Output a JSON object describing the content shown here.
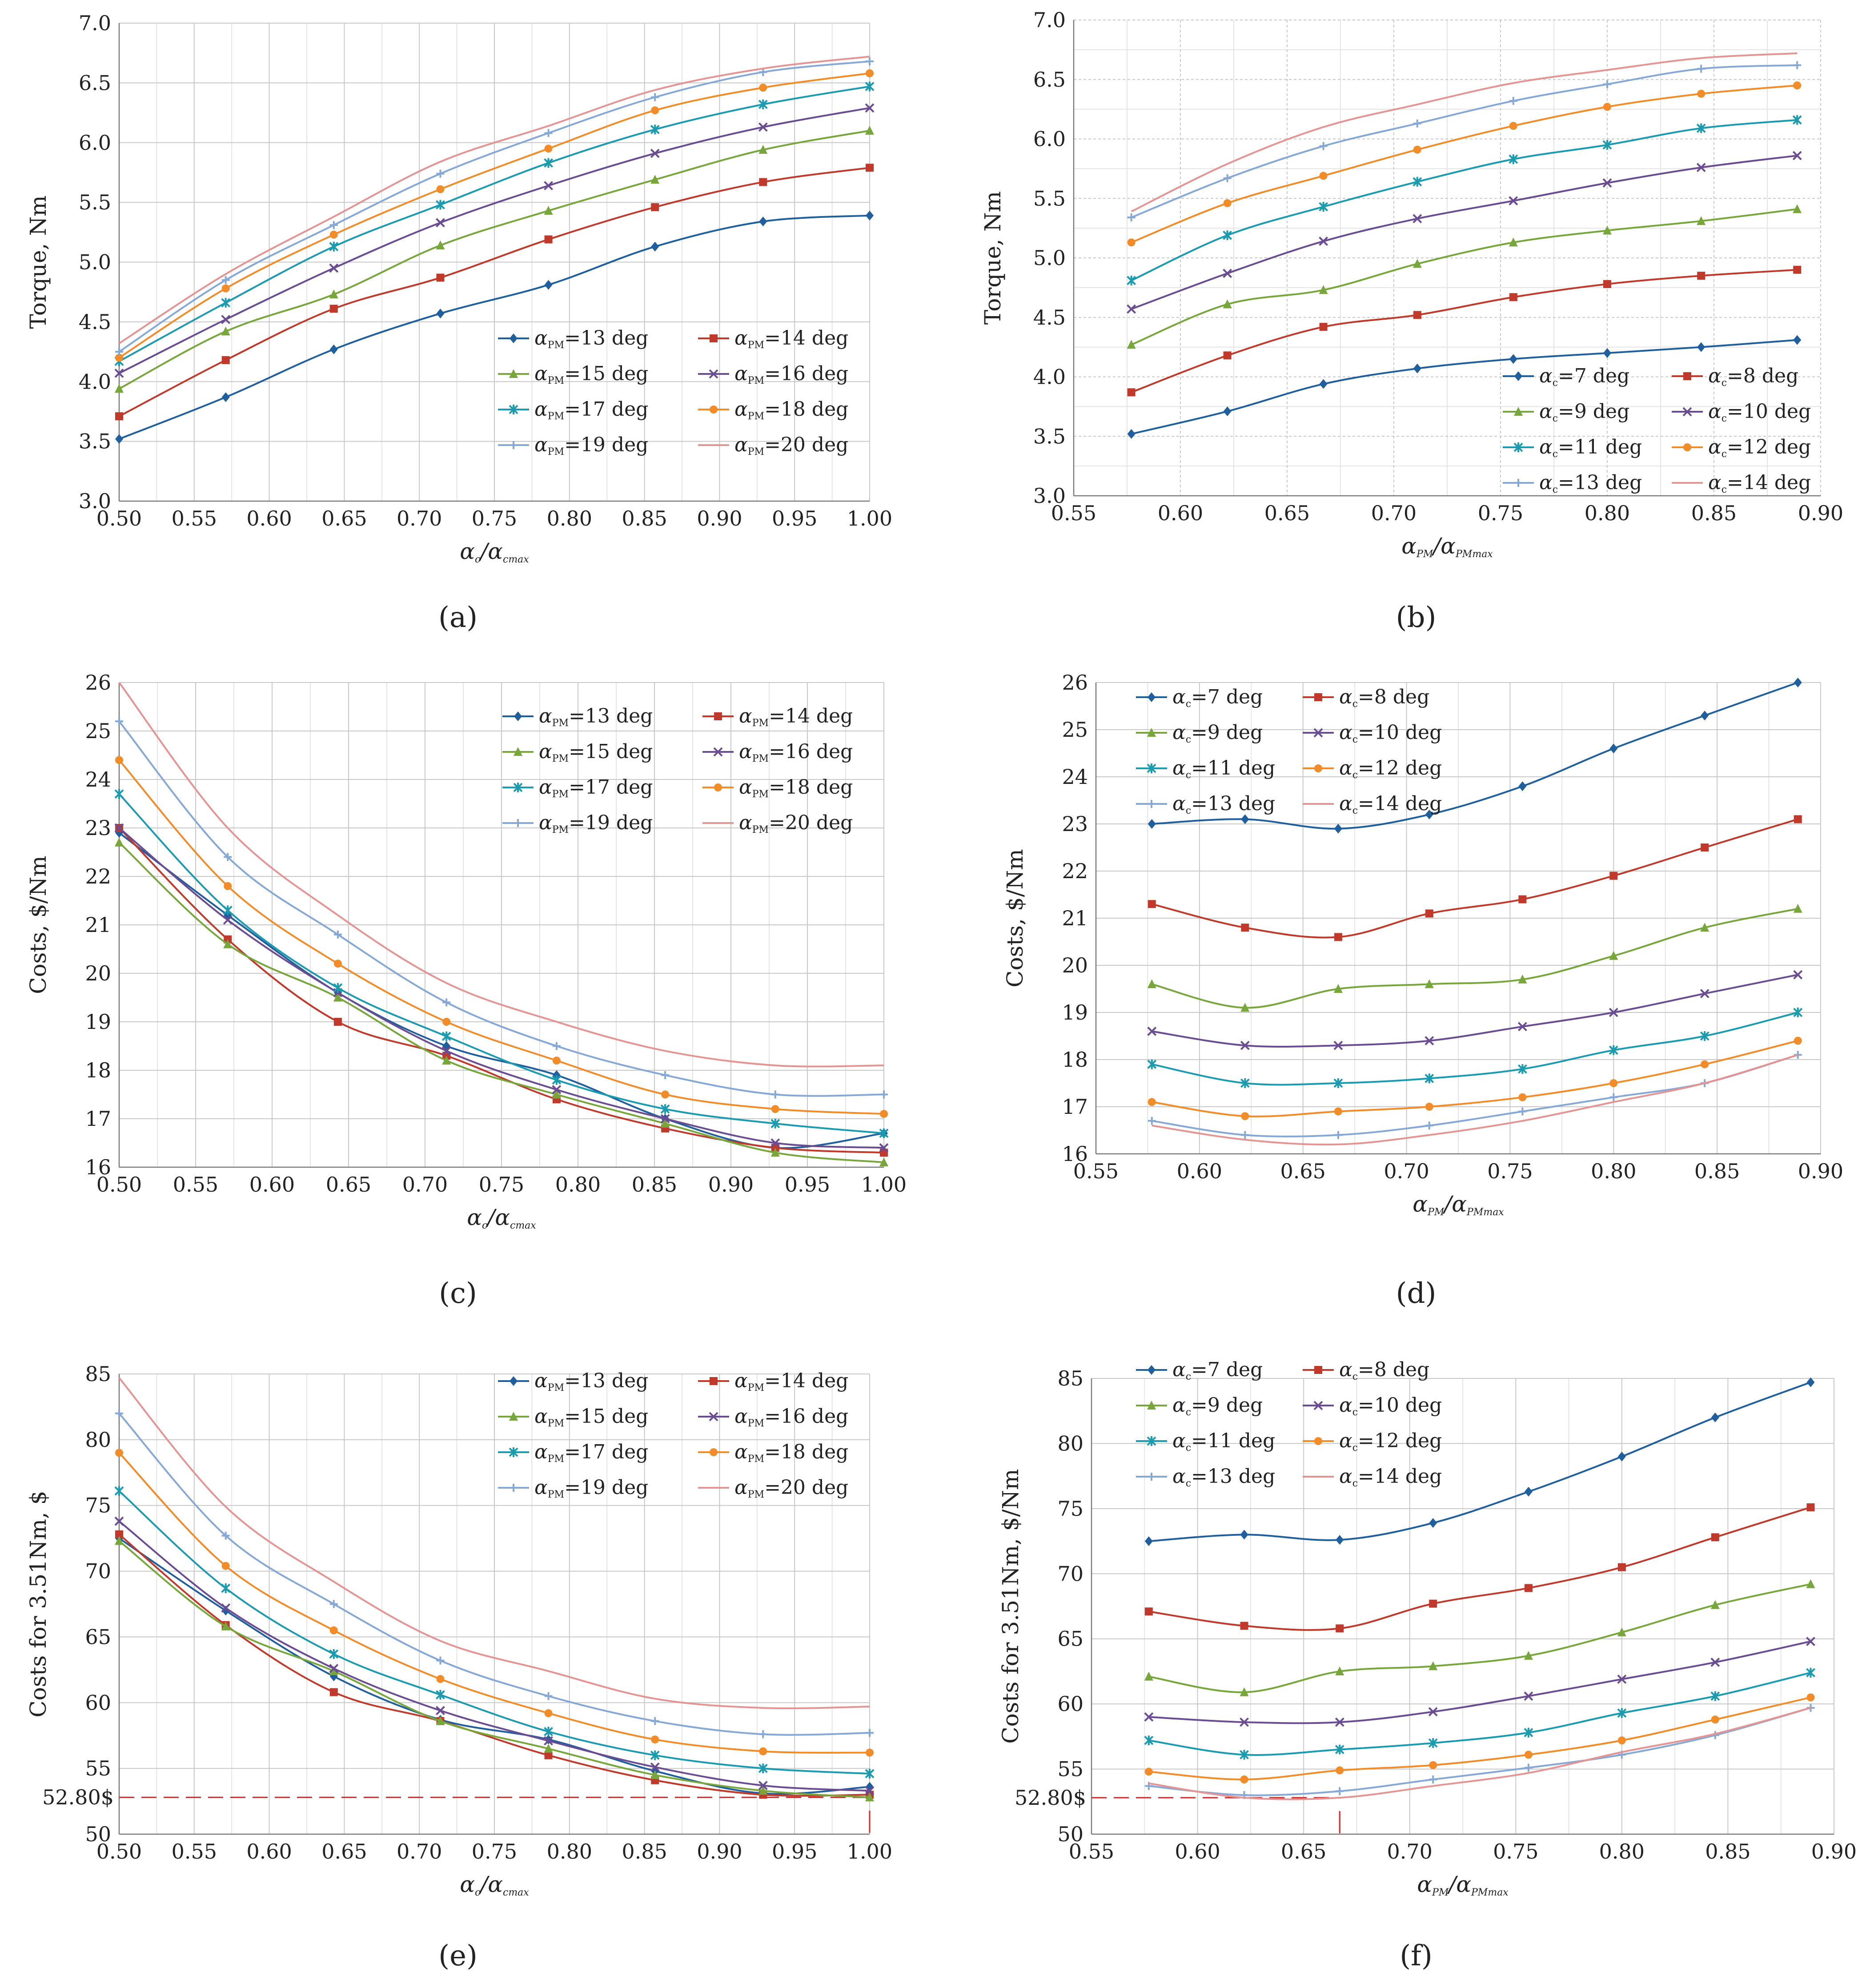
{
  "colors": {
    "s1": "#1f5f9e",
    "s2": "#c0392b",
    "s3": "#77a63b",
    "s4": "#6a4c93",
    "s5": "#1a9bb0",
    "s6": "#f28c28",
    "s7": "#86a8d6",
    "s8": "#e59494",
    "grid": "#c8c8c8",
    "axis": "#7a7a7a",
    "annot": "#d62728"
  },
  "chart_data": [
    {
      "id": "a",
      "type": "line",
      "caption": "(a)",
      "ylabel": "Torque, Nm",
      "xlabel": {
        "main": "α",
        "sub1": "c",
        "sep": "/α",
        "sub2": "cmax"
      },
      "xlim": [
        0.5,
        1.0
      ],
      "ylim": [
        3.0,
        7.0
      ],
      "xticks": [
        "0.50",
        "0.55",
        "0.60",
        "0.65",
        "0.70",
        "0.75",
        "0.80",
        "0.85",
        "0.90",
        "0.95",
        "1.00"
      ],
      "yticks": [
        "3.0",
        "3.5",
        "4.0",
        "4.5",
        "5.0",
        "5.5",
        "6.0",
        "6.5",
        "7.0"
      ],
      "legend_position": "lower-right",
      "x": [
        0.5,
        0.571,
        0.643,
        0.714,
        0.786,
        0.857,
        0.929,
        1.0
      ],
      "series": [
        {
          "name": "=13 deg",
          "sym": "α",
          "sub": "PM",
          "values": [
            3.52,
            3.87,
            4.27,
            4.57,
            4.81,
            5.13,
            5.34,
            5.39
          ]
        },
        {
          "name": "=14 deg",
          "sym": "α",
          "sub": "PM",
          "values": [
            3.71,
            4.18,
            4.61,
            4.87,
            5.19,
            5.46,
            5.67,
            5.79
          ]
        },
        {
          "name": "=15 deg",
          "sym": "α",
          "sub": "PM",
          "values": [
            3.94,
            4.42,
            4.73,
            5.14,
            5.43,
            5.69,
            5.94,
            6.1
          ]
        },
        {
          "name": "=16 deg",
          "sym": "α",
          "sub": "PM",
          "values": [
            4.07,
            4.52,
            4.95,
            5.33,
            5.64,
            5.91,
            6.13,
            6.29
          ]
        },
        {
          "name": "=17 deg",
          "sym": "α",
          "sub": "PM",
          "values": [
            4.17,
            4.66,
            5.13,
            5.48,
            5.83,
            6.11,
            6.32,
            6.47
          ]
        },
        {
          "name": "=18 deg",
          "sym": "α",
          "sub": "PM",
          "values": [
            4.2,
            4.78,
            5.23,
            5.61,
            5.95,
            6.27,
            6.46,
            6.58
          ]
        },
        {
          "name": "=19 deg",
          "sym": "α",
          "sub": "PM",
          "values": [
            4.25,
            4.85,
            5.31,
            5.74,
            6.08,
            6.38,
            6.59,
            6.68
          ]
        },
        {
          "name": "=20 deg",
          "sym": "α",
          "sub": "PM",
          "values": [
            4.32,
            4.9,
            5.38,
            5.84,
            6.14,
            6.44,
            6.62,
            6.72
          ]
        }
      ]
    },
    {
      "id": "b",
      "type": "line",
      "caption": "(b)",
      "ylabel": "Torque, Nm",
      "xlabel": {
        "main": "α",
        "sub1": "PM",
        "sep": "/α",
        "sub2": "PMmax"
      },
      "xlim": [
        0.55,
        0.9
      ],
      "ylim": [
        3.0,
        7.0
      ],
      "xticks": [
        "0.55",
        "0.60",
        "0.65",
        "0.70",
        "0.75",
        "0.80",
        "0.85",
        "0.90"
      ],
      "yticks": [
        "3.0",
        "3.5",
        "4.0",
        "4.5",
        "5.0",
        "5.5",
        "6.0",
        "6.5",
        "7.0"
      ],
      "legend_position": "lower-right",
      "x": [
        0.577,
        0.622,
        0.667,
        0.711,
        0.756,
        0.8,
        0.844,
        0.889
      ],
      "series": [
        {
          "name": "=7 deg",
          "sym": "α",
          "sub": "c",
          "values": [
            3.52,
            3.71,
            3.94,
            4.07,
            4.15,
            4.2,
            4.25,
            4.31
          ]
        },
        {
          "name": "=8 deg",
          "sym": "α",
          "sub": "c",
          "values": [
            3.87,
            4.18,
            4.42,
            4.52,
            4.67,
            4.78,
            4.85,
            4.9
          ]
        },
        {
          "name": "=9 deg",
          "sym": "α",
          "sub": "c",
          "values": [
            4.27,
            4.61,
            4.73,
            4.95,
            5.13,
            5.23,
            5.31,
            5.41
          ]
        },
        {
          "name": "=10 deg",
          "sym": "α",
          "sub": "c",
          "values": [
            4.57,
            4.87,
            5.14,
            5.33,
            5.48,
            5.63,
            5.76,
            5.86
          ]
        },
        {
          "name": "=11 deg",
          "sym": "α",
          "sub": "c",
          "values": [
            4.81,
            5.19,
            5.43,
            5.64,
            5.83,
            5.95,
            6.09,
            6.16
          ]
        },
        {
          "name": "=12 deg",
          "sym": "α",
          "sub": "c",
          "values": [
            5.13,
            5.46,
            5.69,
            5.91,
            6.11,
            6.27,
            6.38,
            6.45
          ]
        },
        {
          "name": "=13 deg",
          "sym": "α",
          "sub": "c",
          "values": [
            5.34,
            5.67,
            5.94,
            6.13,
            6.32,
            6.46,
            6.59,
            6.62
          ]
        },
        {
          "name": "=14 deg",
          "sym": "α",
          "sub": "c",
          "values": [
            5.39,
            5.79,
            6.1,
            6.29,
            6.47,
            6.58,
            6.68,
            6.72
          ]
        }
      ]
    },
    {
      "id": "c",
      "type": "line",
      "caption": "(c)",
      "ylabel": "Costs, $/Nm",
      "xlabel": {
        "main": "α",
        "sub1": "c",
        "sep": "/α",
        "sub2": "cmax"
      },
      "xlim": [
        0.5,
        1.0
      ],
      "ylim": [
        16,
        26
      ],
      "xticks": [
        "0.50",
        "0.55",
        "0.60",
        "0.65",
        "0.70",
        "0.75",
        "0.80",
        "0.85",
        "0.90",
        "0.95",
        "1.00"
      ],
      "yticks": [
        "16",
        "17",
        "18",
        "19",
        "20",
        "21",
        "22",
        "23",
        "24",
        "25",
        "26"
      ],
      "legend_position": "top-right",
      "x": [
        0.5,
        0.571,
        0.643,
        0.714,
        0.786,
        0.857,
        0.929,
        1.0
      ],
      "series": [
        {
          "name": "=13 deg",
          "sym": "α",
          "sub": "PM",
          "values": [
            22.9,
            21.2,
            19.6,
            18.5,
            17.9,
            17.0,
            16.4,
            16.7
          ]
        },
        {
          "name": "=14 deg",
          "sym": "α",
          "sub": "PM",
          "values": [
            23.0,
            20.7,
            19.0,
            18.3,
            17.4,
            16.8,
            16.4,
            16.3
          ]
        },
        {
          "name": "=15 deg",
          "sym": "α",
          "sub": "PM",
          "values": [
            22.7,
            20.6,
            19.5,
            18.2,
            17.5,
            16.9,
            16.3,
            16.1
          ]
        },
        {
          "name": "=16 deg",
          "sym": "α",
          "sub": "PM",
          "values": [
            23.0,
            21.1,
            19.6,
            18.4,
            17.6,
            17.0,
            16.5,
            16.4
          ]
        },
        {
          "name": "=17 deg",
          "sym": "α",
          "sub": "PM",
          "values": [
            23.7,
            21.3,
            19.7,
            18.7,
            17.8,
            17.2,
            16.9,
            16.7
          ]
        },
        {
          "name": "=18 deg",
          "sym": "α",
          "sub": "PM",
          "values": [
            24.4,
            21.8,
            20.2,
            19.0,
            18.2,
            17.5,
            17.2,
            17.1
          ]
        },
        {
          "name": "=19 deg",
          "sym": "α",
          "sub": "PM",
          "values": [
            25.2,
            22.4,
            20.8,
            19.4,
            18.5,
            17.9,
            17.5,
            17.5
          ]
        },
        {
          "name": "=20 deg",
          "sym": "α",
          "sub": "PM",
          "values": [
            26.0,
            23.0,
            21.2,
            19.8,
            19.0,
            18.4,
            18.1,
            18.1
          ]
        }
      ]
    },
    {
      "id": "d",
      "type": "line",
      "caption": "(d)",
      "ylabel": "Costs, $/Nm",
      "xlabel": {
        "main": "α",
        "sub1": "PM",
        "sep": "/α",
        "sub2": "PMmax"
      },
      "xlim": [
        0.55,
        0.9
      ],
      "ylim": [
        16,
        26
      ],
      "xticks": [
        "0.55",
        "0.60",
        "0.65",
        "0.70",
        "0.75",
        "0.80",
        "0.85",
        "0.90"
      ],
      "yticks": [
        "16",
        "17",
        "18",
        "19",
        "20",
        "21",
        "22",
        "23",
        "24",
        "25",
        "26"
      ],
      "legend_position": "top-left",
      "x": [
        0.577,
        0.622,
        0.667,
        0.711,
        0.756,
        0.8,
        0.844,
        0.889
      ],
      "series": [
        {
          "name": "=7 deg",
          "sym": "α",
          "sub": "c",
          "values": [
            23.0,
            23.1,
            22.9,
            23.2,
            23.8,
            24.6,
            25.3,
            26.0
          ]
        },
        {
          "name": "=8 deg",
          "sym": "α",
          "sub": "c",
          "values": [
            21.3,
            20.8,
            20.6,
            21.1,
            21.4,
            21.9,
            22.5,
            23.1
          ]
        },
        {
          "name": "=9 deg",
          "sym": "α",
          "sub": "c",
          "values": [
            19.6,
            19.1,
            19.5,
            19.6,
            19.7,
            20.2,
            20.8,
            21.2
          ]
        },
        {
          "name": "=10 deg",
          "sym": "α",
          "sub": "c",
          "values": [
            18.6,
            18.3,
            18.3,
            18.4,
            18.7,
            19.0,
            19.4,
            19.8
          ]
        },
        {
          "name": "=11 deg",
          "sym": "α",
          "sub": "c",
          "values": [
            17.9,
            17.5,
            17.5,
            17.6,
            17.8,
            18.2,
            18.5,
            19.0
          ]
        },
        {
          "name": "=12 deg",
          "sym": "α",
          "sub": "c",
          "values": [
            17.1,
            16.8,
            16.9,
            17.0,
            17.2,
            17.5,
            17.9,
            18.4
          ]
        },
        {
          "name": "=13 deg",
          "sym": "α",
          "sub": "c",
          "values": [
            16.7,
            16.4,
            16.4,
            16.6,
            16.9,
            17.2,
            17.5,
            18.1
          ]
        },
        {
          "name": "=14 deg",
          "sym": "α",
          "sub": "c",
          "values": [
            16.6,
            16.3,
            16.2,
            16.4,
            16.7,
            17.1,
            17.5,
            18.1
          ]
        }
      ]
    },
    {
      "id": "e",
      "type": "line",
      "caption": "(e)",
      "ylabel": "Costs for 3.51Nm, $",
      "xlabel": {
        "main": "α",
        "sub1": "c",
        "sep": "/α",
        "sub2": "cmax"
      },
      "xlim": [
        0.5,
        1.0
      ],
      "ylim": [
        50,
        85
      ],
      "xticks": [
        "0.50",
        "0.55",
        "0.60",
        "0.65",
        "0.70",
        "0.75",
        "0.80",
        "0.85",
        "0.90",
        "0.95",
        "1.00"
      ],
      "yticks": [
        "50",
        "55",
        "60",
        "65",
        "70",
        "75",
        "80",
        "85"
      ],
      "legend_position": "top-right",
      "annotation": {
        "label": "52.80$",
        "y": 52.8,
        "marker_x": 1.0
      },
      "x": [
        0.5,
        0.571,
        0.643,
        0.714,
        0.786,
        0.857,
        0.929,
        1.0
      ],
      "series": [
        {
          "name": "=13 deg",
          "sym": "α",
          "sub": "PM",
          "values": [
            72.5,
            67.0,
            62.0,
            58.7,
            57.2,
            54.8,
            53.1,
            53.6
          ]
        },
        {
          "name": "=14 deg",
          "sym": "α",
          "sub": "PM",
          "values": [
            72.8,
            65.9,
            60.8,
            58.6,
            56.0,
            54.1,
            53.0,
            53.0
          ]
        },
        {
          "name": "=15 deg",
          "sym": "α",
          "sub": "PM",
          "values": [
            72.3,
            65.8,
            62.4,
            58.6,
            56.5,
            54.5,
            53.3,
            52.8
          ]
        },
        {
          "name": "=16 deg",
          "sym": "α",
          "sub": "PM",
          "values": [
            73.8,
            67.2,
            62.6,
            59.4,
            57.1,
            55.1,
            53.7,
            53.3
          ]
        },
        {
          "name": "=17 deg",
          "sym": "α",
          "sub": "PM",
          "values": [
            76.1,
            68.7,
            63.7,
            60.6,
            57.8,
            56.0,
            55.0,
            54.6
          ]
        },
        {
          "name": "=18 deg",
          "sym": "α",
          "sub": "PM",
          "values": [
            79.0,
            70.4,
            65.5,
            61.8,
            59.2,
            57.2,
            56.3,
            56.2
          ]
        },
        {
          "name": "=19 deg",
          "sym": "α",
          "sub": "PM",
          "values": [
            82.0,
            72.7,
            67.5,
            63.2,
            60.5,
            58.6,
            57.6,
            57.7
          ]
        },
        {
          "name": "=20 deg",
          "sym": "α",
          "sub": "PM",
          "values": [
            84.7,
            74.9,
            69.2,
            64.7,
            62.4,
            60.3,
            59.6,
            59.7
          ]
        }
      ]
    },
    {
      "id": "f",
      "type": "line",
      "caption": "(f)",
      "ylabel": "Costs for 3.51Nm, $/Nm",
      "xlabel": {
        "main": "α",
        "sub1": "PM",
        "sep": "/α",
        "sub2": "PMmax"
      },
      "xlim": [
        0.55,
        0.9
      ],
      "ylim": [
        50,
        85
      ],
      "xticks": [
        "0.55",
        "0.60",
        "0.65",
        "0.70",
        "0.75",
        "0.80",
        "0.85",
        "0.90"
      ],
      "yticks": [
        "50",
        "55",
        "60",
        "65",
        "70",
        "75",
        "80",
        "85"
      ],
      "legend_position": "top-left",
      "annotation": {
        "label": "52.80$",
        "y": 52.8,
        "marker_x": 0.667
      },
      "x": [
        0.577,
        0.622,
        0.667,
        0.711,
        0.756,
        0.8,
        0.844,
        0.889
      ],
      "series": [
        {
          "name": "=7 deg",
          "sym": "α",
          "sub": "c",
          "values": [
            72.5,
            73.0,
            72.6,
            73.9,
            76.3,
            79.0,
            82.0,
            84.7
          ]
        },
        {
          "name": "=8 deg",
          "sym": "α",
          "sub": "c",
          "values": [
            67.1,
            66.0,
            65.8,
            67.7,
            68.9,
            70.5,
            72.8,
            75.1
          ]
        },
        {
          "name": "=9 deg",
          "sym": "α",
          "sub": "c",
          "values": [
            62.1,
            60.9,
            62.5,
            62.9,
            63.7,
            65.5,
            67.6,
            69.2
          ]
        },
        {
          "name": "=10 deg",
          "sym": "α",
          "sub": "c",
          "values": [
            59.0,
            58.6,
            58.6,
            59.4,
            60.6,
            61.9,
            63.2,
            64.8
          ]
        },
        {
          "name": "=11 deg",
          "sym": "α",
          "sub": "c",
          "values": [
            57.2,
            56.1,
            56.5,
            57.0,
            57.8,
            59.3,
            60.6,
            62.4
          ]
        },
        {
          "name": "=12 deg",
          "sym": "α",
          "sub": "c",
          "values": [
            54.8,
            54.2,
            54.9,
            55.3,
            56.1,
            57.2,
            58.8,
            60.5
          ]
        },
        {
          "name": "=13 deg",
          "sym": "α",
          "sub": "c",
          "values": [
            53.7,
            53.0,
            53.3,
            54.2,
            55.1,
            56.1,
            57.6,
            59.7
          ]
        },
        {
          "name": "=14 deg",
          "sym": "α",
          "sub": "c",
          "values": [
            53.9,
            52.8,
            52.8,
            53.7,
            54.7,
            56.3,
            57.7,
            59.7
          ]
        }
      ]
    }
  ]
}
